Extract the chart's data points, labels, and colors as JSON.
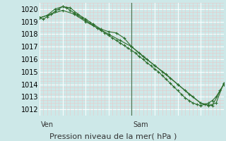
{
  "background_color": "#cde8e8",
  "plot_bg_color": "#cde8e8",
  "line_color": "#2d6e2d",
  "xlabel": "Pression niveau de la mer( hPa )",
  "xlabel_fontsize": 8,
  "tick_fontsize": 7,
  "ylim": [
    1011.5,
    1020.5
  ],
  "yticks": [
    1012,
    1013,
    1014,
    1015,
    1016,
    1017,
    1018,
    1019,
    1020
  ],
  "total_hours": 48,
  "ven_hour": 0,
  "sam_hour": 24,
  "line1_t": [
    0,
    1,
    2,
    3,
    4,
    5,
    6,
    7,
    8,
    9,
    10,
    11,
    12,
    13,
    14,
    15,
    16,
    17,
    18,
    19,
    20,
    21,
    22,
    23,
    24,
    25,
    26,
    27,
    28,
    29,
    30,
    31,
    32,
    33,
    34,
    35,
    36,
    37,
    38,
    39,
    40,
    41,
    42,
    43,
    44,
    45,
    46,
    47,
    48
  ],
  "line1_y": [
    1019.3,
    1019.2,
    1019.4,
    1019.6,
    1019.8,
    1020.0,
    1020.2,
    1020.1,
    1019.9,
    1019.7,
    1019.5,
    1019.3,
    1019.1,
    1018.9,
    1018.7,
    1018.5,
    1018.3,
    1018.1,
    1017.9,
    1017.7,
    1017.5,
    1017.3,
    1017.1,
    1016.9,
    1016.7,
    1016.5,
    1016.2,
    1016.0,
    1015.7,
    1015.5,
    1015.2,
    1015.0,
    1014.7,
    1014.4,
    1014.1,
    1013.8,
    1013.5,
    1013.2,
    1012.9,
    1012.7,
    1012.5,
    1012.4,
    1012.3,
    1012.4,
    1012.5,
    1012.7,
    1013.0,
    1013.5,
    1014.0
  ],
  "line2_t": [
    0,
    2,
    4,
    6,
    8,
    10,
    12,
    14,
    16,
    18,
    20,
    22,
    24,
    26,
    28,
    30,
    32,
    34,
    36,
    38,
    40,
    42,
    44,
    46,
    48
  ],
  "line2_y": [
    1019.3,
    1019.5,
    1020.0,
    1020.2,
    1020.1,
    1019.6,
    1019.2,
    1018.8,
    1018.4,
    1018.2,
    1018.1,
    1017.7,
    1017.0,
    1016.5,
    1016.0,
    1015.5,
    1015.0,
    1014.5,
    1014.0,
    1013.5,
    1013.0,
    1012.5,
    1012.3,
    1012.5,
    1014.1
  ],
  "line3_t": [
    0,
    3,
    6,
    9,
    12,
    15,
    18,
    21,
    24,
    27,
    30,
    33,
    36,
    39,
    42,
    45,
    48
  ],
  "line3_y": [
    1019.3,
    1019.6,
    1019.9,
    1019.6,
    1019.0,
    1018.5,
    1018.0,
    1017.5,
    1017.0,
    1016.2,
    1015.5,
    1014.8,
    1014.0,
    1013.2,
    1012.5,
    1012.3,
    1014.0
  ],
  "vline_color": "#557755",
  "minor_h_color": "#e8c8c8",
  "major_h_color": "#ffffff",
  "minor_v_color": "#e8c8c8",
  "major_v_color": "#ffffff"
}
